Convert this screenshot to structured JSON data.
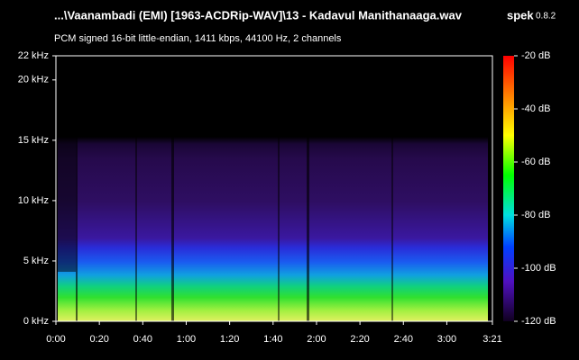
{
  "chart_data": {
    "type": "spectrogram",
    "title": "...\\Vaanambadi (EMI) [1963-ACDRip-WAV]\\13 - Kadavul Manithanaaga.wav",
    "app": "spek",
    "version": "0.8.2",
    "subtitle": "PCM signed 16-bit little-endian, 1411 kbps, 44100 Hz, 2 channels",
    "xlim": [
      0,
      201
    ],
    "xticks": [
      {
        "value": 0,
        "label": "0:00"
      },
      {
        "value": 20,
        "label": "0:20"
      },
      {
        "value": 40,
        "label": "0:40"
      },
      {
        "value": 60,
        "label": "1:00"
      },
      {
        "value": 80,
        "label": "1:20"
      },
      {
        "value": 100,
        "label": "1:40"
      },
      {
        "value": 120,
        "label": "2:00"
      },
      {
        "value": 140,
        "label": "2:20"
      },
      {
        "value": 160,
        "label": "2:40"
      },
      {
        "value": 180,
        "label": "3:00"
      },
      {
        "value": 201,
        "label": "3:21"
      }
    ],
    "ylim": [
      0,
      22
    ],
    "yticks": [
      {
        "value": 0,
        "label": "0 kHz"
      },
      {
        "value": 5,
        "label": "5 kHz"
      },
      {
        "value": 10,
        "label": "10 kHz"
      },
      {
        "value": 15,
        "label": "15 kHz"
      },
      {
        "value": 20,
        "label": "20 kHz"
      },
      {
        "value": 22,
        "label": "22 kHz"
      }
    ],
    "colorbar": {
      "lim": [
        -120,
        -20
      ],
      "ticks": [
        {
          "value": -20,
          "label": "-20 dB"
        },
        {
          "value": -40,
          "label": "-40 dB"
        },
        {
          "value": -60,
          "label": "-60 dB"
        },
        {
          "value": -80,
          "label": "-80 dB"
        },
        {
          "value": -100,
          "label": "-100 dB"
        },
        {
          "value": -120,
          "label": "-120 dB"
        }
      ]
    }
  }
}
